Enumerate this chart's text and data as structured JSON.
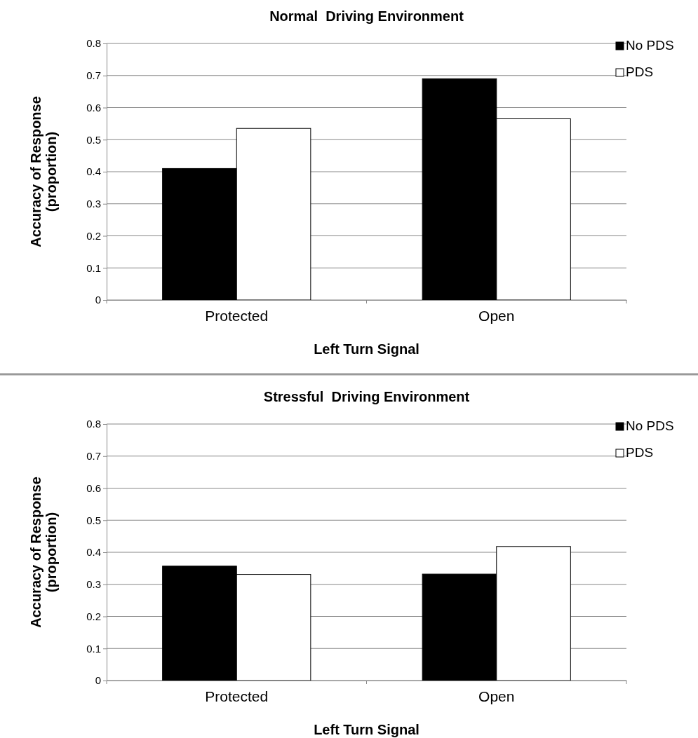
{
  "chart_data": [
    {
      "type": "bar",
      "title": "Normal  Driving Environment",
      "xlabel": "Left Turn Signal",
      "ylabel": "Accuracy of Response (proportion)",
      "categories": [
        "Protected",
        "Open"
      ],
      "series": [
        {
          "name": "No PDS",
          "color": "#000000",
          "values": [
            0.41,
            0.69
          ]
        },
        {
          "name": "PDS",
          "color": "#ffffff",
          "values": [
            0.535,
            0.565
          ]
        }
      ],
      "ylim": [
        0,
        0.8
      ],
      "yticks": [
        0,
        0.1,
        0.2,
        0.3,
        0.4,
        0.5,
        0.6,
        0.7,
        0.8
      ],
      "grid": "y",
      "legend": "top right"
    },
    {
      "type": "bar",
      "title": "Stressful  Driving Environment",
      "xlabel": "Left Turn Signal",
      "ylabel": "Accuracy of Response (proportion)",
      "categories": [
        "Protected",
        "Open"
      ],
      "series": [
        {
          "name": "No PDS",
          "color": "#000000",
          "values": [
            0.357,
            0.332
          ]
        },
        {
          "name": "PDS",
          "color": "#ffffff",
          "values": [
            0.331,
            0.418
          ]
        }
      ],
      "ylim": [
        0,
        0.8
      ],
      "yticks": [
        0,
        0.1,
        0.2,
        0.3,
        0.4,
        0.5,
        0.6,
        0.7,
        0.8
      ],
      "grid": "y",
      "legend": "top right"
    }
  ]
}
